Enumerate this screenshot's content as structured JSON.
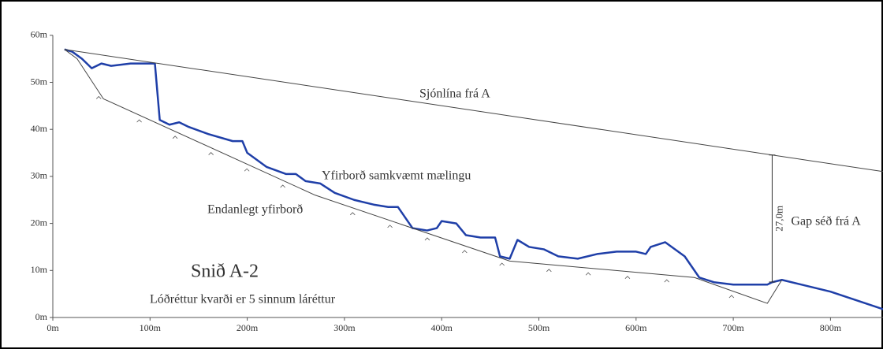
{
  "chart_data": {
    "type": "line",
    "title": "Snið A-2",
    "subtitle": "Lóðréttur kvarði er 5 sinnum láréttur",
    "xlim": [
      0,
      855
    ],
    "ylim": [
      0,
      60
    ],
    "xticks": [
      {
        "value": 0,
        "label": "0m"
      },
      {
        "value": 100,
        "label": "100m"
      },
      {
        "value": 200,
        "label": "200m"
      },
      {
        "value": 300,
        "label": "300m"
      },
      {
        "value": 400,
        "label": "400m"
      },
      {
        "value": 500,
        "label": "500m"
      },
      {
        "value": 600,
        "label": "600m"
      },
      {
        "value": 700,
        "label": "700m"
      },
      {
        "value": 800,
        "label": "800m"
      }
    ],
    "yticks": [
      {
        "value": 0,
        "label": "0m"
      },
      {
        "value": 10,
        "label": "10m"
      },
      {
        "value": 20,
        "label": "20m"
      },
      {
        "value": 30,
        "label": "30m"
      },
      {
        "value": 40,
        "label": "40m"
      },
      {
        "value": 50,
        "label": "50m"
      },
      {
        "value": 60,
        "label": "60m"
      }
    ],
    "series": [
      {
        "name": "Yfirborð samkvæmt mælingu",
        "color": "#1f3fa8",
        "x": [
          12,
          20,
          30,
          40,
          50,
          60,
          80,
          100,
          105,
          110,
          120,
          130,
          140,
          160,
          185,
          195,
          200,
          220,
          240,
          250,
          260,
          275,
          290,
          310,
          330,
          345,
          355,
          370,
          385,
          395,
          400,
          415,
          425,
          440,
          455,
          460,
          470,
          478,
          490,
          505,
          520,
          540,
          560,
          580,
          600,
          610,
          615,
          630,
          650,
          665,
          680,
          700,
          725,
          735,
          740,
          750,
          800,
          855
        ],
        "values": [
          57,
          56.5,
          55,
          53,
          54,
          53.5,
          54,
          54,
          54,
          42,
          41,
          41.5,
          40.5,
          39,
          37.5,
          37.5,
          35,
          32,
          30.5,
          30.5,
          29,
          28.5,
          26.5,
          25,
          24,
          23.5,
          23.5,
          19,
          18.5,
          19,
          20.5,
          20,
          17.5,
          17,
          17,
          13,
          12.5,
          16.5,
          15,
          14.5,
          13,
          12.5,
          13.5,
          14,
          14,
          13.5,
          15,
          16,
          13,
          8.5,
          7.5,
          7,
          7,
          7,
          7.5,
          8,
          5.5,
          1.7
        ]
      },
      {
        "name": "Endanlegt yfirborð",
        "color": "#444444",
        "x": [
          12,
          25,
          52,
          270,
          470,
          660,
          735,
          750
        ],
        "values": [
          57,
          55,
          46.5,
          26,
          12,
          8.5,
          3,
          8
        ]
      },
      {
        "name": "Sjónlína frá A",
        "color": "#444444",
        "x": [
          12,
          855
        ],
        "values": [
          57,
          31
        ]
      }
    ],
    "gap": {
      "x": 740,
      "value": 27,
      "label": "27,0m",
      "text": "Gap séð frá A"
    }
  }
}
